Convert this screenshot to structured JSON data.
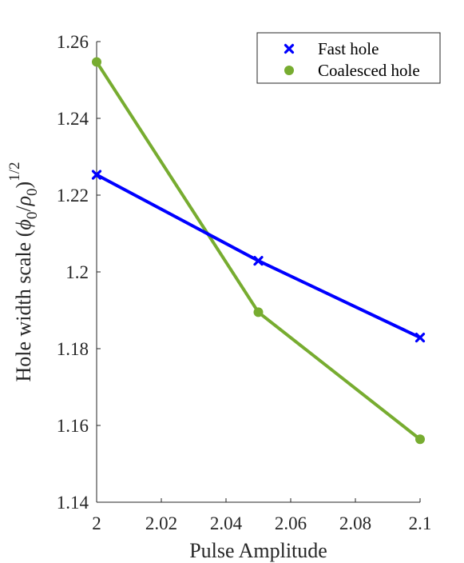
{
  "chart_data": {
    "type": "line",
    "xlabel": "Pulse Amplitude",
    "ylabel": "Hole width scale (ϕ₀/ρ₀)^1/2",
    "ylabel_parts": {
      "base": "Hole width scale (",
      "phi": "ϕ",
      "sub0a": "0",
      "slash": "/",
      "rho": "ρ",
      "sub0b": "0",
      "close": ")",
      "exponent": "1/2"
    },
    "xlim": [
      2,
      2.1
    ],
    "ylim": [
      1.14,
      1.26
    ],
    "x_ticks": [
      "2",
      "2.02",
      "2.04",
      "2.06",
      "2.08",
      "2.1"
    ],
    "y_ticks": [
      "1.14",
      "1.16",
      "1.18",
      "1.2",
      "1.22",
      "1.24",
      "1.26"
    ],
    "x_tick_values": [
      2,
      2.02,
      2.04,
      2.06,
      2.08,
      2.1
    ],
    "y_tick_values": [
      1.14,
      1.16,
      1.18,
      1.2,
      1.22,
      1.24,
      1.26
    ],
    "legend_position": "top-right",
    "grid": false,
    "series": [
      {
        "name": "Fast hole",
        "marker": "x",
        "color": "#0000ff",
        "x": [
          2,
          2.05,
          2.1
        ],
        "y": [
          1.2253,
          1.2029,
          1.1829
        ]
      },
      {
        "name": "Coalesced hole",
        "marker": "circle",
        "color": "#77ac30",
        "x": [
          2,
          2.05,
          2.1
        ],
        "y": [
          1.2547,
          1.1895,
          1.1564
        ]
      }
    ]
  }
}
